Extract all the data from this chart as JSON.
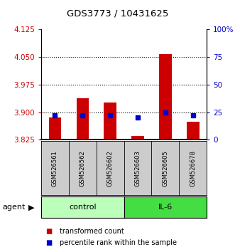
{
  "title": "GDS3773 / 10431625",
  "samples": [
    "GSM526561",
    "GSM526562",
    "GSM526602",
    "GSM526603",
    "GSM526605",
    "GSM526678"
  ],
  "red_values": [
    3.885,
    3.938,
    3.926,
    3.836,
    4.057,
    3.874
  ],
  "blue_values": [
    22,
    22,
    22,
    20,
    25,
    22
  ],
  "ylim_left": [
    3.825,
    4.125
  ],
  "ylim_right": [
    0,
    100
  ],
  "left_ticks": [
    3.825,
    3.9,
    3.975,
    4.05,
    4.125
  ],
  "right_ticks": [
    0,
    25,
    50,
    75,
    100
  ],
  "right_tick_labels": [
    "0",
    "25",
    "50",
    "75",
    "100%"
  ],
  "left_tick_color": "#cc0000",
  "right_tick_color": "#0000cc",
  "bar_color": "#cc0000",
  "dot_color": "#0000cc",
  "baseline": 3.825,
  "grid_lines": [
    3.9,
    3.975,
    4.05
  ],
  "control_color": "#bbffbb",
  "il6_color": "#44dd44",
  "group_label_control": "control",
  "group_label_il6": "IL-6",
  "legend_red": "transformed count",
  "legend_blue": "percentile rank within the sample",
  "agent_label": "agent",
  "bar_width": 0.45,
  "sample_box_color": "#cccccc"
}
